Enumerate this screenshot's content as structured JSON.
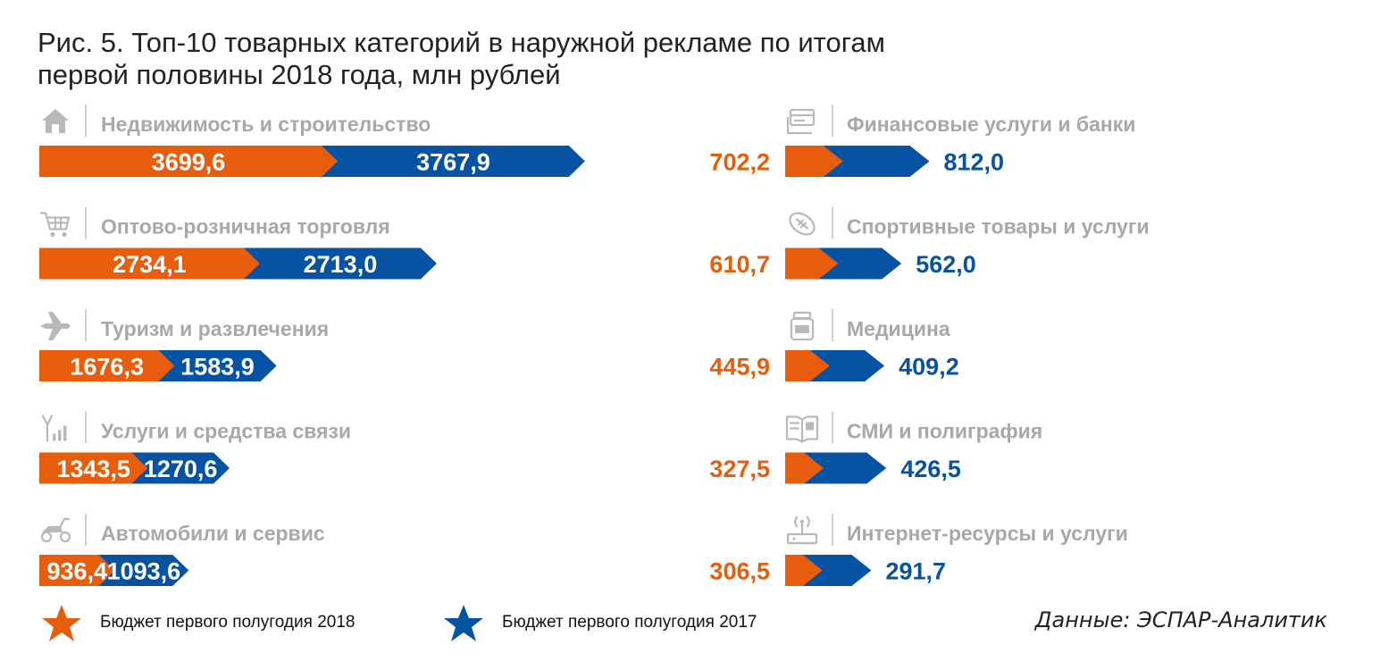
{
  "title_line1": "Рис. 5. Топ-10 товарных категорий в наружной рекламе по итогам",
  "title_line2": "первой половины 2018 года, млн рублей",
  "source": "Данные: ЭСПАР-Аналитик",
  "colors": {
    "y2018": "#e85d0c",
    "y2017": "#0753a3",
    "label": "#a8a8a8",
    "icon": "#b9b9b9"
  },
  "chart_data": {
    "type": "bar",
    "categories": [
      "Недвижимость и строительство",
      "Оптово-розничная торговля",
      "Туризм и развлечения",
      "Услуги и средства связи",
      "Автомобили и сервис",
      "Финансовые услуги и банки",
      "Спортивные товары и услуги",
      "Медицина",
      "СМИ и полиграфия",
      "Интернет-ресурсы и услуги"
    ],
    "category_icons": [
      "house-icon",
      "cart-icon",
      "airplane-icon",
      "antenna-icon",
      "scooter-icon",
      "money-icon",
      "ball-icon",
      "jar-icon",
      "newspaper-icon",
      "router-icon"
    ],
    "series": [
      {
        "name": "Бюджет первого полугодия 2018",
        "color": "#e85d0c",
        "values": [
          3699.6,
          2734.1,
          1676.3,
          1343.5,
          936.4,
          702.2,
          610.7,
          445.9,
          327.5,
          306.5
        ]
      },
      {
        "name": "Бюджет первого полугодия 2017",
        "color": "#0753a3",
        "values": [
          3767.9,
          2713.0,
          1583.9,
          1270.6,
          1093.6,
          812.0,
          562.0,
          409.2,
          426.5,
          291.7
        ]
      }
    ],
    "value_labels_2018": [
      "3699,6",
      "2734,1",
      "1676,3",
      "1343,5",
      "936,4",
      "702,2",
      "610,7",
      "445,9",
      "327,5",
      "306,5"
    ],
    "value_labels_2017": [
      "3767,9",
      "2713,0",
      "1583,9",
      "1270,6",
      "1093,6",
      "812,0",
      "562,0",
      "409,2",
      "426,5",
      "291,7"
    ],
    "legend_placement": "bottom-left",
    "grid": false
  }
}
